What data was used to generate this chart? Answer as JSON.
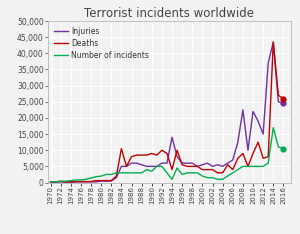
{
  "title": "Terrorist incidents worldwide",
  "years": [
    1970,
    1971,
    1972,
    1973,
    1974,
    1975,
    1976,
    1977,
    1978,
    1979,
    1980,
    1981,
    1982,
    1983,
    1984,
    1985,
    1986,
    1987,
    1988,
    1989,
    1990,
    1991,
    1992,
    1993,
    1994,
    1995,
    1996,
    1997,
    1998,
    1999,
    2000,
    2001,
    2002,
    2003,
    2004,
    2005,
    2006,
    2007,
    2008,
    2009,
    2010,
    2011,
    2012,
    2013,
    2014,
    2015,
    2016
  ],
  "injuries": [
    100,
    100,
    200,
    100,
    100,
    200,
    200,
    200,
    200,
    200,
    500,
    400,
    500,
    1500,
    5000,
    5000,
    6000,
    6000,
    5500,
    5000,
    5000,
    5000,
    6000,
    6000,
    14000,
    8000,
    6000,
    6000,
    6000,
    5000,
    5500,
    6000,
    5000,
    5500,
    5000,
    6000,
    7000,
    12500,
    22500,
    10000,
    22000,
    19000,
    15000,
    37000,
    43500,
    25000,
    24500
  ],
  "deaths": [
    200,
    200,
    400,
    200,
    200,
    300,
    300,
    300,
    300,
    600,
    600,
    600,
    600,
    2000,
    10500,
    5000,
    8000,
    8500,
    8500,
    8500,
    9000,
    8500,
    10000,
    9000,
    4000,
    10000,
    5500,
    5000,
    5000,
    5000,
    4000,
    4000,
    4000,
    3000,
    3000,
    5500,
    4000,
    7500,
    9000,
    5000,
    9000,
    12500,
    7500,
    8000,
    43500,
    27000,
    26000
  ],
  "incidents": [
    200,
    200,
    400,
    400,
    600,
    800,
    800,
    1000,
    1400,
    1800,
    2000,
    2500,
    2500,
    3000,
    3000,
    3000,
    3000,
    3000,
    3000,
    4000,
    3500,
    5000,
    5000,
    3000,
    1000,
    4500,
    2500,
    3000,
    3000,
    3000,
    2000,
    1500,
    1500,
    1000,
    1000,
    2000,
    3000,
    4000,
    5000,
    5000,
    5000,
    5000,
    5000,
    6000,
    17000,
    11000,
    10500
  ],
  "injuries_color": "#7030a0",
  "deaths_color": "#c00000",
  "incidents_color": "#00b050",
  "bg_color": "#f2f2f2",
  "grid_color": "#ffffff",
  "ylim": [
    0,
    50000
  ],
  "yticks": [
    0,
    5000,
    10000,
    15000,
    20000,
    25000,
    30000,
    35000,
    40000,
    45000,
    50000
  ],
  "legend_labels": [
    "Injuries",
    "Deaths",
    "Number of incidents"
  ],
  "marker_years": [
    2016
  ],
  "marker_injuries": [
    24500
  ],
  "marker_deaths": [
    26000
  ],
  "marker_incidents": [
    10500
  ]
}
